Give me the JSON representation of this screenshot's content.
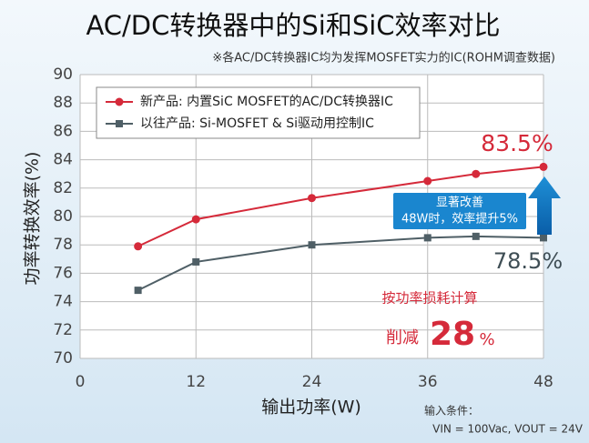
{
  "chart_data": {
    "type": "line",
    "title": "AC/DC转换器中的Si和SiC效率对比",
    "subtitle": "※各AC/DC转换器IC均为发挥MOSFET实力的IC(ROHM调查数据)",
    "x_label": "输出功率(W)",
    "y_label": "功率转换效率(%)",
    "x": [
      6,
      12,
      24,
      36,
      41,
      48
    ],
    "series": [
      {
        "name": "新产品: 内置SiC MOSFET的AC/DC转换器IC",
        "color": "#d52a3a",
        "marker": "circle",
        "values": [
          77.9,
          79.8,
          81.3,
          82.5,
          83.0,
          83.5
        ]
      },
      {
        "name": "以往产品: Si-MOSFET & Si驱动用控制IC",
        "color": "#4f5f66",
        "marker": "square",
        "values": [
          74.8,
          76.8,
          78.0,
          78.5,
          78.6,
          78.5
        ]
      }
    ],
    "xlim": [
      0,
      48
    ],
    "xticks": [
      0,
      12,
      24,
      36,
      48
    ],
    "ylim": [
      70,
      90
    ],
    "yticks": [
      70,
      72,
      74,
      76,
      78,
      80,
      82,
      84,
      86,
      88,
      90
    ],
    "grid": true,
    "legend": "top-left",
    "annotations": {
      "new_end": "83.5%",
      "old_end": "78.5%",
      "improve": [
        "显著改善",
        "48W时，效率提升5%"
      ],
      "loss_title": "按功率损耗计算",
      "loss_cut": [
        "削减",
        "28",
        "%"
      ],
      "conditions": [
        "输入条件：",
        "VIN = 100Vac, VOUT = 24V"
      ]
    }
  }
}
